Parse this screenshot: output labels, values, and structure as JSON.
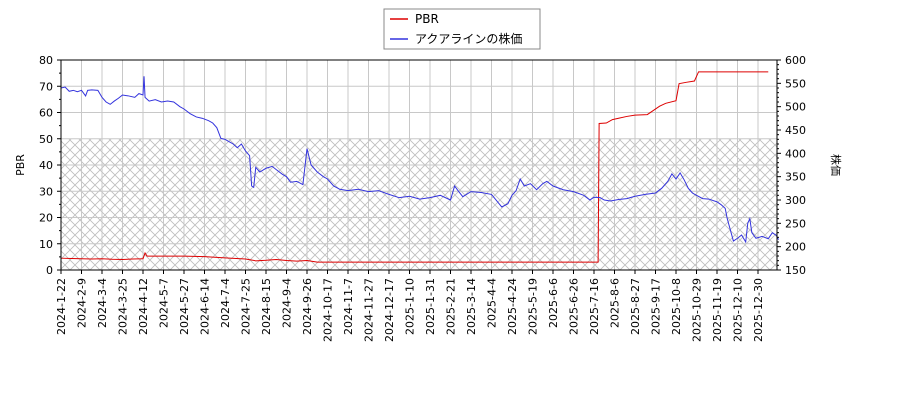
{
  "chart_data": {
    "type": "line",
    "title": "",
    "legend": {
      "position": "top-center",
      "entries": [
        {
          "label": "PBR",
          "color": "#dd0000"
        },
        {
          "label": "アクアラインの株価",
          "color": "#3333dd"
        }
      ]
    },
    "xlabel": "",
    "ylabel_left": "PBR",
    "ylabel_right": "株価",
    "ylim_left": [
      0,
      80
    ],
    "ylim_right": [
      150,
      600
    ],
    "yticks_left": [
      0,
      10,
      20,
      30,
      40,
      50,
      60,
      70,
      80
    ],
    "yticks_right": [
      150,
      200,
      250,
      300,
      350,
      400,
      450,
      500,
      550,
      600
    ],
    "grid": true,
    "hatched_band_left": [
      0,
      50
    ],
    "x_tick_labels": [
      "2024-1-22",
      "2024-2-9",
      "2024-3-4",
      "2024-3-25",
      "2024-4-12",
      "2024-5-7",
      "2024-5-27",
      "2024-6-14",
      "2024-7-4",
      "2024-7-25",
      "2024-8-15",
      "2024-9-4",
      "2024-9-26",
      "2024-10-17",
      "2024-11-7",
      "2024-11-27",
      "2024-12-17",
      "2025-1-10",
      "2025-1-31",
      "2025-2-21",
      "2025-3-14",
      "2025-4-4",
      "2025-4-24",
      "2025-5-19",
      "2025-6-6",
      "2025-6-26",
      "2025-7-16",
      "2025-8-6",
      "2025-8-27",
      "2025-9-17",
      "2025-10-8",
      "2025-10-29",
      "2025-11-19",
      "2025-12-10",
      "2025-12-30"
    ],
    "series": [
      {
        "name": "PBR",
        "axis": "left",
        "color": "#dd0000",
        "points": [
          [
            0,
            4.5
          ],
          [
            0.5,
            4.4
          ],
          [
            1,
            4.3
          ],
          [
            1.5,
            4.2
          ],
          [
            2,
            4.3
          ],
          [
            2.5,
            4.1
          ],
          [
            3,
            4.0
          ],
          [
            3.5,
            4.2
          ],
          [
            4,
            4.3
          ],
          [
            4.1,
            6.5
          ],
          [
            4.2,
            5.3
          ],
          [
            5,
            5.3
          ],
          [
            6,
            5.3
          ],
          [
            7,
            5.1
          ],
          [
            8,
            4.6
          ],
          [
            9,
            4.2
          ],
          [
            9.5,
            3.5
          ],
          [
            10,
            3.7
          ],
          [
            10.5,
            4.0
          ],
          [
            11,
            3.6
          ],
          [
            11.5,
            3.4
          ],
          [
            12,
            3.6
          ],
          [
            12.5,
            3.0
          ],
          [
            13,
            3.0
          ],
          [
            14,
            3.0
          ],
          [
            15,
            3.0
          ],
          [
            16,
            3.0
          ],
          [
            17,
            3.0
          ],
          [
            18,
            3.0
          ],
          [
            19,
            3.0
          ],
          [
            20,
            3.0
          ],
          [
            21,
            3.0
          ],
          [
            22,
            3.0
          ],
          [
            23,
            3.0
          ],
          [
            24,
            3.0
          ],
          [
            25,
            3.0
          ],
          [
            26.2,
            3.0
          ],
          [
            26.25,
            55.8
          ],
          [
            26.6,
            56.0
          ],
          [
            26.9,
            57.3
          ],
          [
            27.2,
            57.8
          ],
          [
            27.6,
            58.5
          ],
          [
            28,
            59.0
          ],
          [
            28.6,
            59.2
          ],
          [
            29.2,
            62.4
          ],
          [
            29.5,
            63.5
          ],
          [
            30,
            64.5
          ],
          [
            30.15,
            71.0
          ],
          [
            30.5,
            71.5
          ],
          [
            30.9,
            72.0
          ],
          [
            31.1,
            75.5
          ],
          [
            32,
            75.5
          ],
          [
            33,
            75.5
          ],
          [
            34,
            75.5
          ],
          [
            34.5,
            75.5
          ]
        ]
      },
      {
        "name": "アクアラインの株価",
        "axis": "right",
        "color": "#3333dd",
        "points": [
          [
            0,
            540
          ],
          [
            0.2,
            542
          ],
          [
            0.4,
            533
          ],
          [
            0.6,
            535
          ],
          [
            0.8,
            532
          ],
          [
            1,
            535
          ],
          [
            1.2,
            523
          ],
          [
            1.3,
            535
          ],
          [
            1.5,
            536
          ],
          [
            1.8,
            535
          ],
          [
            2,
            520
          ],
          [
            2.2,
            510
          ],
          [
            2.4,
            505
          ],
          [
            2.6,
            512
          ],
          [
            2.8,
            518
          ],
          [
            3,
            525
          ],
          [
            3.3,
            523
          ],
          [
            3.6,
            520
          ],
          [
            3.8,
            528
          ],
          [
            4,
            525
          ],
          [
            4.05,
            565
          ],
          [
            4.1,
            520
          ],
          [
            4.3,
            512
          ],
          [
            4.6,
            515
          ],
          [
            4.9,
            510
          ],
          [
            5.2,
            512
          ],
          [
            5.5,
            510
          ],
          [
            5.8,
            500
          ],
          [
            6,
            495
          ],
          [
            6.3,
            485
          ],
          [
            6.6,
            478
          ],
          [
            6.9,
            475
          ],
          [
            7.2,
            470
          ],
          [
            7.4,
            465
          ],
          [
            7.6,
            455
          ],
          [
            7.8,
            432
          ],
          [
            8,
            430
          ],
          [
            8.2,
            425
          ],
          [
            8.4,
            420
          ],
          [
            8.6,
            412
          ],
          [
            8.8,
            420
          ],
          [
            9,
            405
          ],
          [
            9.2,
            395
          ],
          [
            9.3,
            330
          ],
          [
            9.4,
            327
          ],
          [
            9.5,
            370
          ],
          [
            9.7,
            360
          ],
          [
            10,
            368
          ],
          [
            10.3,
            372
          ],
          [
            10.5,
            365
          ],
          [
            10.8,
            355
          ],
          [
            11,
            350
          ],
          [
            11.2,
            338
          ],
          [
            11.5,
            340
          ],
          [
            11.8,
            333
          ],
          [
            12,
            410
          ],
          [
            12.2,
            375
          ],
          [
            12.5,
            360
          ],
          [
            12.8,
            350
          ],
          [
            13,
            345
          ],
          [
            13.3,
            330
          ],
          [
            13.6,
            323
          ],
          [
            14,
            320
          ],
          [
            14.5,
            323
          ],
          [
            15,
            318
          ],
          [
            15.5,
            320
          ],
          [
            16,
            312
          ],
          [
            16.5,
            305
          ],
          [
            17,
            308
          ],
          [
            17.5,
            302
          ],
          [
            18,
            305
          ],
          [
            18.5,
            310
          ],
          [
            19,
            300
          ],
          [
            19.2,
            330
          ],
          [
            19.4,
            318
          ],
          [
            19.6,
            307
          ],
          [
            20,
            318
          ],
          [
            20.5,
            316
          ],
          [
            21,
            312
          ],
          [
            21.5,
            285
          ],
          [
            21.8,
            292
          ],
          [
            22,
            310
          ],
          [
            22.2,
            320
          ],
          [
            22.4,
            345
          ],
          [
            22.6,
            330
          ],
          [
            22.9,
            335
          ],
          [
            23.2,
            322
          ],
          [
            23.5,
            335
          ],
          [
            23.7,
            340
          ],
          [
            24,
            330
          ],
          [
            24.5,
            322
          ],
          [
            25,
            318
          ],
          [
            25.5,
            310
          ],
          [
            25.8,
            300
          ],
          [
            26,
            306
          ],
          [
            26.3,
            305
          ],
          [
            26.5,
            300
          ],
          [
            26.8,
            298
          ],
          [
            27.2,
            301
          ],
          [
            27.6,
            303
          ],
          [
            28,
            308
          ],
          [
            28.5,
            312
          ],
          [
            29,
            315
          ],
          [
            29.3,
            325
          ],
          [
            29.6,
            340
          ],
          [
            29.8,
            356
          ],
          [
            30,
            345
          ],
          [
            30.2,
            358
          ],
          [
            30.4,
            343
          ],
          [
            30.6,
            325
          ],
          [
            30.8,
            315
          ],
          [
            31,
            310
          ],
          [
            31.3,
            303
          ],
          [
            31.6,
            302
          ],
          [
            32,
            296
          ],
          [
            32.2,
            290
          ],
          [
            32.4,
            282
          ],
          [
            32.5,
            260
          ],
          [
            32.7,
            228
          ],
          [
            32.8,
            212
          ],
          [
            33,
            218
          ],
          [
            33.2,
            225
          ],
          [
            33.4,
            210
          ],
          [
            33.5,
            250
          ],
          [
            33.6,
            260
          ],
          [
            33.7,
            230
          ],
          [
            33.9,
            218
          ],
          [
            34.2,
            222
          ],
          [
            34.5,
            217
          ],
          [
            34.7,
            230
          ],
          [
            34.9,
            224
          ],
          [
            35,
            215
          ]
        ]
      }
    ]
  }
}
